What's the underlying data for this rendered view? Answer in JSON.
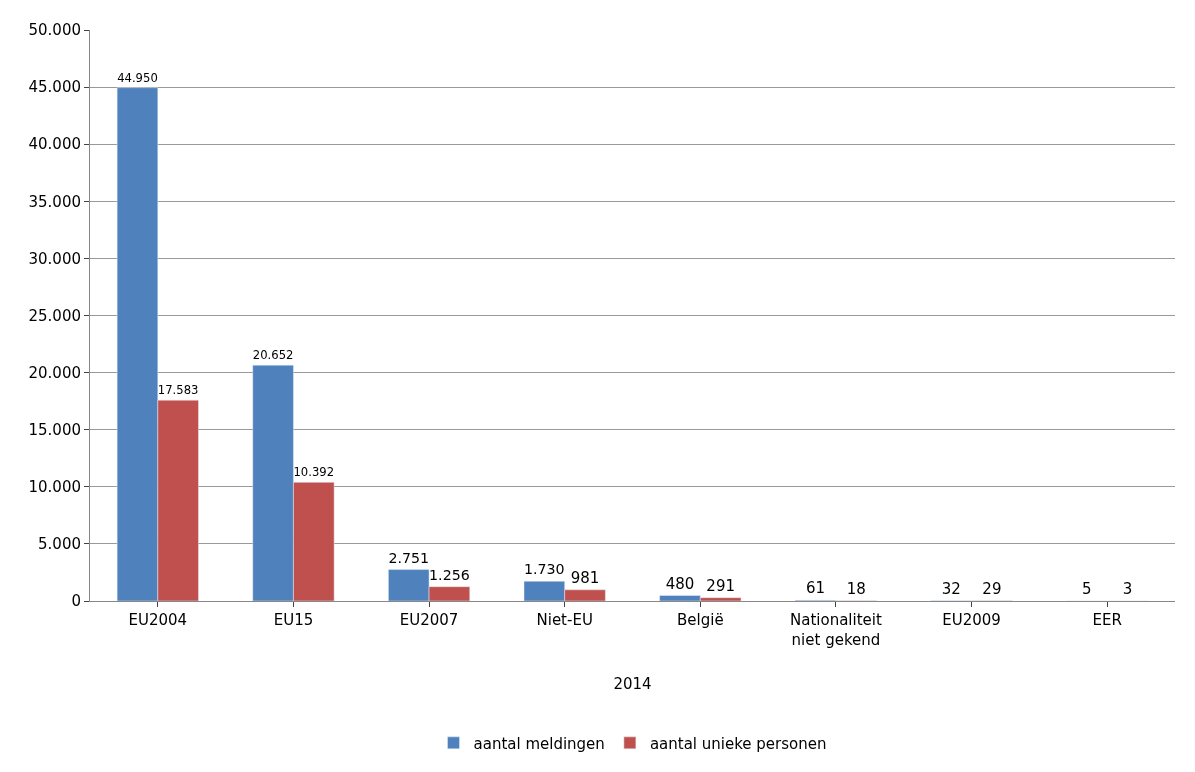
{
  "chart_data": {
    "type": "bar",
    "categories": [
      "EU2004",
      "EU15",
      "EU2007",
      "Niet-EU",
      "België",
      "Nationaliteit niet gekend",
      "EU2009",
      "EER"
    ],
    "xlabel": "2014",
    "series": [
      {
        "name": "aantal meldingen",
        "color": "#4f81bd",
        "values": [
          44950,
          20652,
          2751,
          1730,
          480,
          61,
          32,
          5
        ],
        "value_labels": [
          "44.950",
          "20.652",
          "2.751",
          "1.730",
          "480",
          "61",
          "32",
          "5"
        ]
      },
      {
        "name": "aantal unieke personen",
        "color": "#c0504d",
        "values": [
          17583,
          10392,
          1256,
          981,
          291,
          18,
          29,
          3
        ],
        "value_labels": [
          "17.583",
          "10.392",
          "1.256",
          "981",
          "291",
          "18",
          "29",
          "3"
        ]
      }
    ],
    "ylim": [
      0,
      50000
    ],
    "yticks": [
      {
        "value": 0,
        "label": "0"
      },
      {
        "value": 5000,
        "label": "5.000"
      },
      {
        "value": 10000,
        "label": "10.000"
      },
      {
        "value": 15000,
        "label": "15.000"
      },
      {
        "value": 20000,
        "label": "20.000"
      },
      {
        "value": 25000,
        "label": "25.000"
      },
      {
        "value": 30000,
        "label": "30.000"
      },
      {
        "value": 35000,
        "label": "35.000"
      },
      {
        "value": 40000,
        "label": "40.000"
      },
      {
        "value": 45000,
        "label": "45.000"
      },
      {
        "value": 50000,
        "label": "50.000"
      }
    ],
    "grid": "y",
    "legend": "bottom"
  }
}
